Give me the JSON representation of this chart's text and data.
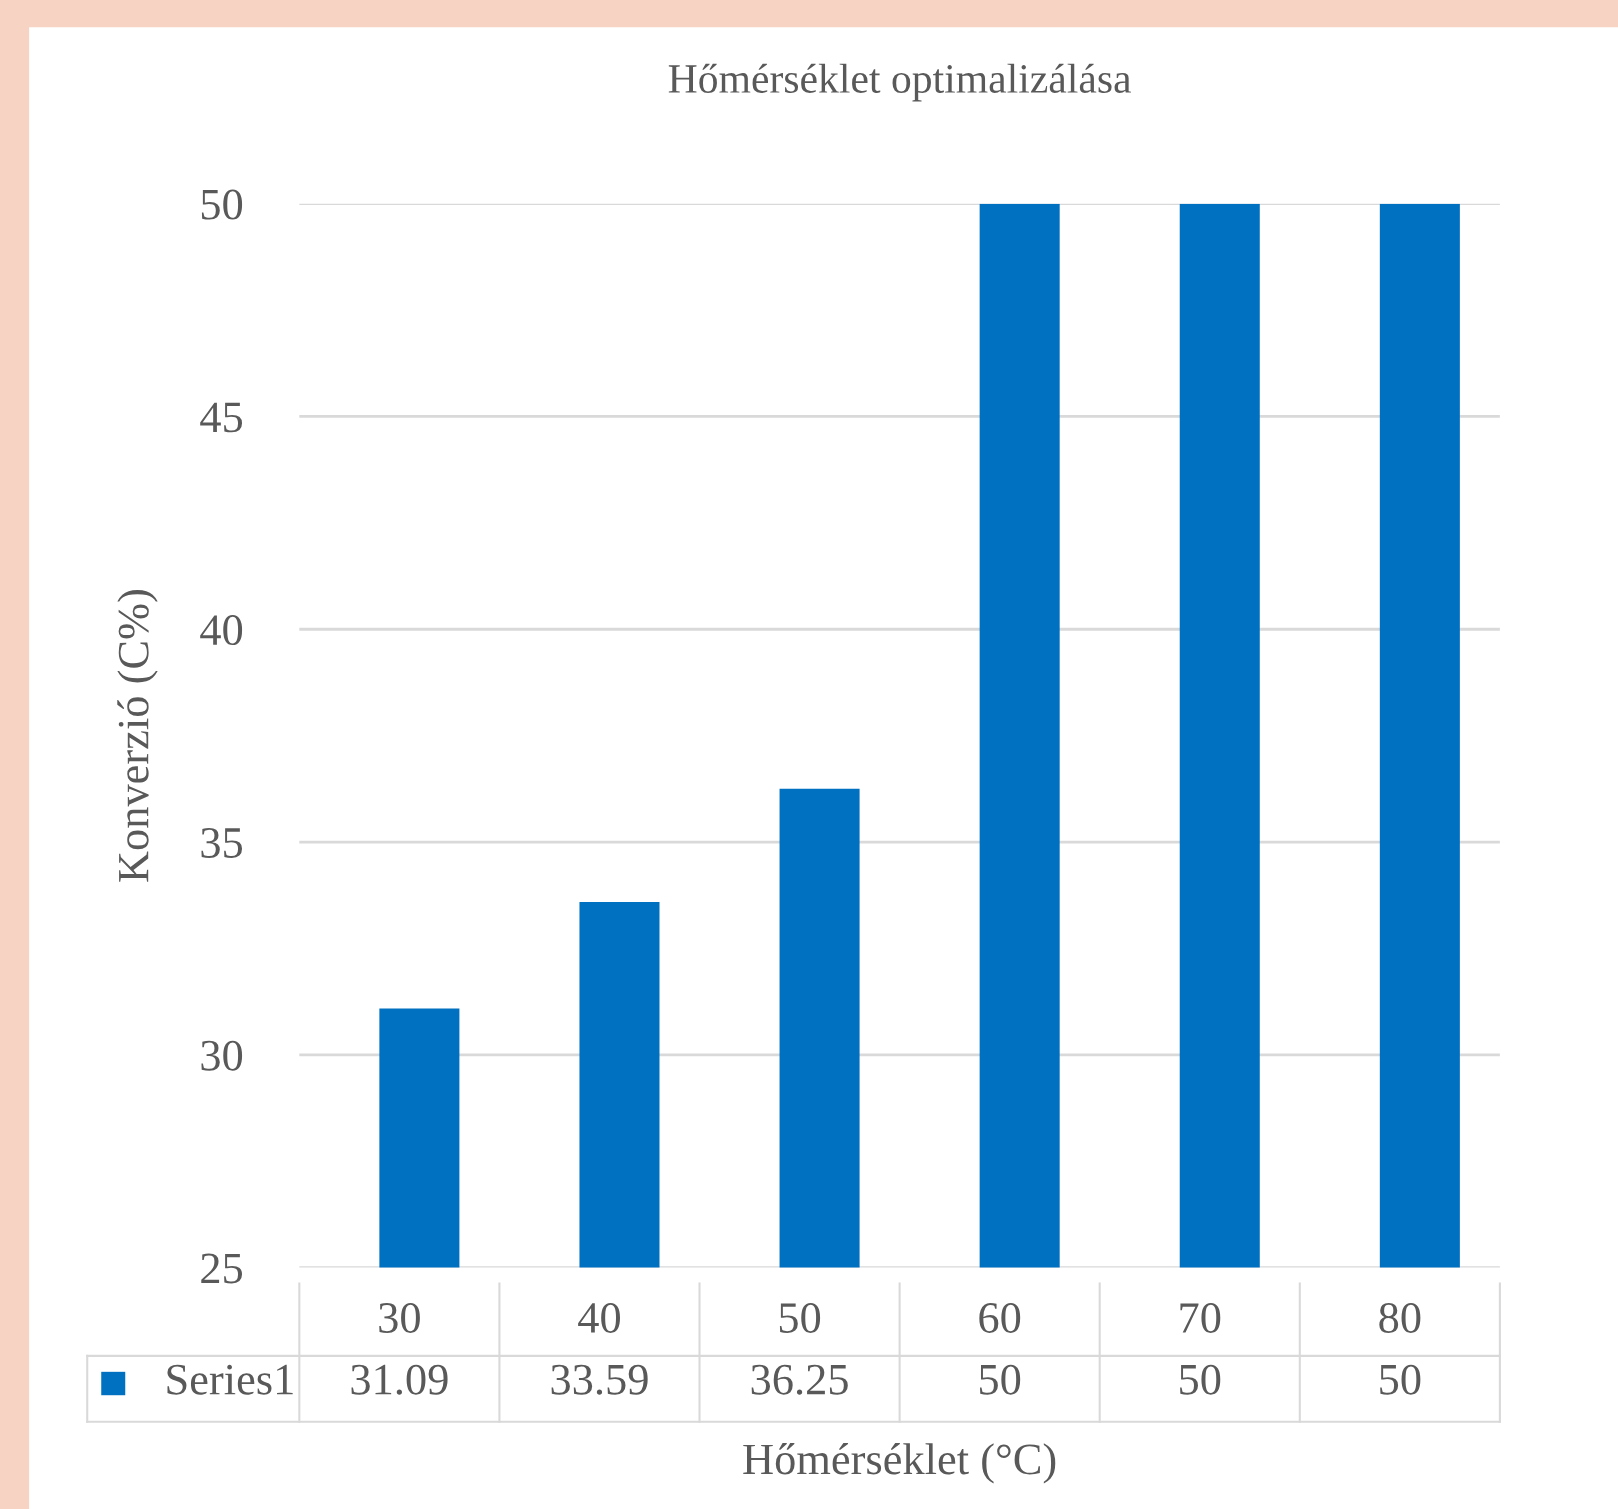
{
  "chart_data": {
    "type": "bar",
    "title": "Hőmérséklet optimalizálása",
    "xlabel": "Hőmérséklet (°C)",
    "ylabel": "Konverzió (C%)",
    "categories": [
      "30",
      "40",
      "50",
      "60",
      "70",
      "80"
    ],
    "series": [
      {
        "name": "Series1",
        "color": "#0070c0",
        "values": [
          31.09,
          33.59,
          36.25,
          50,
          50,
          50
        ]
      }
    ],
    "ylim": [
      25,
      50
    ],
    "yticks": [
      25,
      30,
      35,
      40,
      45,
      50
    ],
    "grid": "y",
    "data_labels": true
  }
}
